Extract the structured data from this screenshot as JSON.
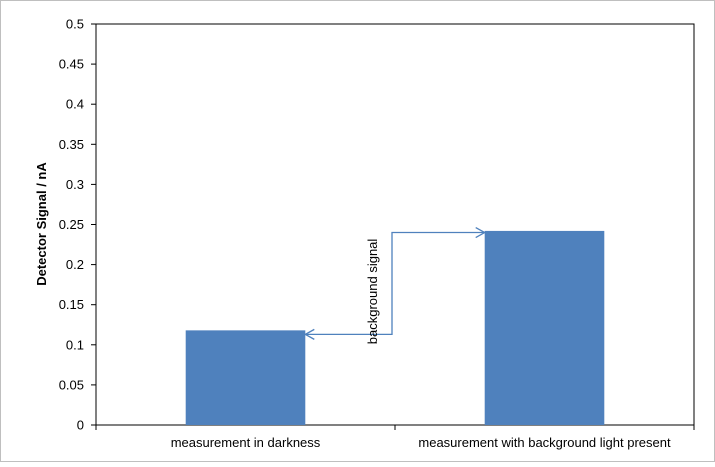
{
  "chart_data": {
    "type": "bar",
    "title": "",
    "xlabel": "",
    "ylabel": "Detector Signal / nA",
    "categories": [
      "measurement in darkness",
      "measurement with background light present"
    ],
    "values": [
      0.118,
      0.242
    ],
    "ylim": [
      0,
      0.5
    ],
    "yticks": [
      "0",
      "0.05",
      "0.1",
      "0.15",
      "0.2",
      "0.25",
      "0.3",
      "0.35",
      "0.4",
      "0.45",
      "0.5"
    ],
    "grid": false,
    "legend": "none",
    "bar_color": "#4F81BD",
    "annotation": {
      "text": "background signal",
      "arrow_low_value": 0.113,
      "arrow_high_value": 0.24,
      "color": "#4F81BD"
    }
  }
}
